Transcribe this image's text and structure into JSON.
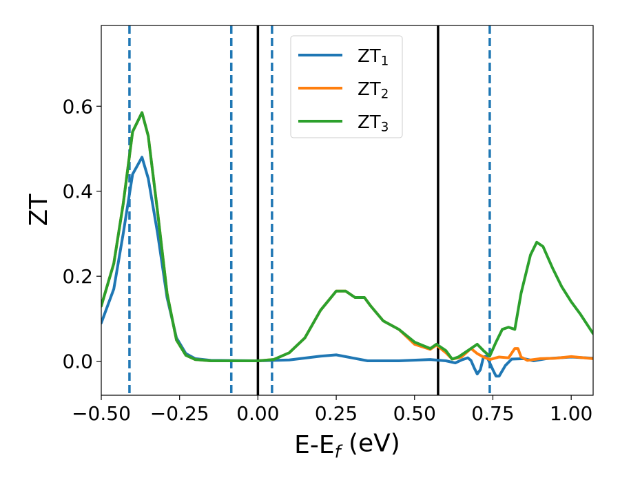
{
  "chart_data": {
    "type": "line",
    "xlabel": "E-E_f (eV)",
    "ylabel": "ZT",
    "xlim": [
      -0.5,
      1.07
    ],
    "ylim": [
      -0.08,
      0.79
    ],
    "grid": false,
    "legend_position": "top-center",
    "x_ticks": [
      -0.5,
      -0.25,
      0.0,
      0.25,
      0.5,
      0.75,
      1.0
    ],
    "x_tick_labels": [
      "−0.50",
      "−0.25",
      "0.00",
      "0.25",
      "0.50",
      "0.75",
      "1.00"
    ],
    "y_ticks": [
      0.0,
      0.2,
      0.4,
      0.6
    ],
    "y_tick_labels": [
      "0.0",
      "0.2",
      "0.4",
      "0.6"
    ],
    "series": [
      {
        "name": "ZT_1",
        "color": "#1f77b4",
        "points": [
          [
            -0.5,
            0.09
          ],
          [
            -0.46,
            0.17
          ],
          [
            -0.43,
            0.3
          ],
          [
            -0.4,
            0.44
          ],
          [
            -0.37,
            0.48
          ],
          [
            -0.35,
            0.43
          ],
          [
            -0.32,
            0.3
          ],
          [
            -0.29,
            0.15
          ],
          [
            -0.26,
            0.055
          ],
          [
            -0.23,
            0.018
          ],
          [
            -0.2,
            0.006
          ],
          [
            -0.15,
            0.002
          ],
          [
            0.0,
            0.001
          ],
          [
            0.1,
            0.003
          ],
          [
            0.2,
            0.012
          ],
          [
            0.25,
            0.015
          ],
          [
            0.3,
            0.008
          ],
          [
            0.35,
            0.001
          ],
          [
            0.45,
            0.001
          ],
          [
            0.55,
            0.004
          ],
          [
            0.6,
            0.001
          ],
          [
            0.63,
            -0.004
          ],
          [
            0.65,
            0.003
          ],
          [
            0.67,
            0.008
          ],
          [
            0.68,
            0.002
          ],
          [
            0.69,
            -0.015
          ],
          [
            0.7,
            -0.03
          ],
          [
            0.71,
            -0.02
          ],
          [
            0.72,
            0.01
          ],
          [
            0.73,
            0.012
          ],
          [
            0.75,
            -0.02
          ],
          [
            0.76,
            -0.035
          ],
          [
            0.77,
            -0.035
          ],
          [
            0.79,
            -0.01
          ],
          [
            0.81,
            0.005
          ],
          [
            0.85,
            0.006
          ],
          [
            0.88,
            0.001
          ],
          [
            0.92,
            0.006
          ],
          [
            1.0,
            0.01
          ],
          [
            1.07,
            0.007
          ]
        ]
      },
      {
        "name": "ZT_2",
        "color": "#ff7f0e",
        "points": [
          [
            -0.5,
            0.13
          ],
          [
            -0.46,
            0.23
          ],
          [
            -0.43,
            0.37
          ],
          [
            -0.4,
            0.54
          ],
          [
            -0.37,
            0.585
          ],
          [
            -0.35,
            0.53
          ],
          [
            -0.32,
            0.35
          ],
          [
            -0.29,
            0.16
          ],
          [
            -0.26,
            0.05
          ],
          [
            -0.23,
            0.014
          ],
          [
            -0.2,
            0.004
          ],
          [
            -0.15,
            0.001
          ],
          [
            0.0,
            0.001
          ],
          [
            0.05,
            0.004
          ],
          [
            0.1,
            0.02
          ],
          [
            0.15,
            0.055
          ],
          [
            0.2,
            0.12
          ],
          [
            0.25,
            0.165
          ],
          [
            0.28,
            0.165
          ],
          [
            0.31,
            0.15
          ],
          [
            0.34,
            0.15
          ],
          [
            0.36,
            0.13
          ],
          [
            0.4,
            0.095
          ],
          [
            0.45,
            0.075
          ],
          [
            0.5,
            0.04
          ],
          [
            0.55,
            0.028
          ],
          [
            0.57,
            0.038
          ],
          [
            0.6,
            0.02
          ],
          [
            0.62,
            0.005
          ],
          [
            0.65,
            0.01
          ],
          [
            0.68,
            0.03
          ],
          [
            0.7,
            0.018
          ],
          [
            0.72,
            0.01
          ],
          [
            0.74,
            0.004
          ],
          [
            0.77,
            0.01
          ],
          [
            0.8,
            0.008
          ],
          [
            0.82,
            0.03
          ],
          [
            0.83,
            0.03
          ],
          [
            0.84,
            0.01
          ],
          [
            0.86,
            0.002
          ],
          [
            0.9,
            0.006
          ],
          [
            0.95,
            0.007
          ],
          [
            1.0,
            0.011
          ],
          [
            1.07,
            0.006
          ]
        ]
      },
      {
        "name": "ZT_3",
        "color": "#2ca02c",
        "points": [
          [
            -0.5,
            0.13
          ],
          [
            -0.46,
            0.23
          ],
          [
            -0.43,
            0.37
          ],
          [
            -0.4,
            0.54
          ],
          [
            -0.37,
            0.585
          ],
          [
            -0.35,
            0.53
          ],
          [
            -0.32,
            0.35
          ],
          [
            -0.29,
            0.16
          ],
          [
            -0.26,
            0.05
          ],
          [
            -0.23,
            0.014
          ],
          [
            -0.2,
            0.004
          ],
          [
            -0.15,
            0.001
          ],
          [
            0.0,
            0.001
          ],
          [
            0.05,
            0.004
          ],
          [
            0.1,
            0.02
          ],
          [
            0.15,
            0.055
          ],
          [
            0.2,
            0.12
          ],
          [
            0.25,
            0.165
          ],
          [
            0.28,
            0.165
          ],
          [
            0.31,
            0.15
          ],
          [
            0.34,
            0.15
          ],
          [
            0.36,
            0.13
          ],
          [
            0.4,
            0.095
          ],
          [
            0.45,
            0.075
          ],
          [
            0.5,
            0.045
          ],
          [
            0.55,
            0.03
          ],
          [
            0.57,
            0.04
          ],
          [
            0.6,
            0.025
          ],
          [
            0.62,
            0.005
          ],
          [
            0.64,
            0.01
          ],
          [
            0.66,
            0.02
          ],
          [
            0.68,
            0.03
          ],
          [
            0.7,
            0.04
          ],
          [
            0.72,
            0.025
          ],
          [
            0.74,
            0.012
          ],
          [
            0.76,
            0.045
          ],
          [
            0.78,
            0.075
          ],
          [
            0.8,
            0.08
          ],
          [
            0.82,
            0.075
          ],
          [
            0.84,
            0.16
          ],
          [
            0.87,
            0.25
          ],
          [
            0.89,
            0.28
          ],
          [
            0.91,
            0.27
          ],
          [
            0.94,
            0.22
          ],
          [
            0.97,
            0.175
          ],
          [
            1.0,
            0.14
          ],
          [
            1.03,
            0.11
          ],
          [
            1.07,
            0.065
          ]
        ]
      }
    ],
    "vertical_lines": [
      {
        "x": -0.41,
        "style": "dashed",
        "color": "#1f77b4"
      },
      {
        "x": -0.085,
        "style": "dashed",
        "color": "#1f77b4"
      },
      {
        "x": 0.0,
        "style": "solid",
        "color": "#000000"
      },
      {
        "x": 0.045,
        "style": "dashed",
        "color": "#1f77b4"
      },
      {
        "x": 0.575,
        "style": "solid",
        "color": "#000000"
      },
      {
        "x": 0.74,
        "style": "dashed",
        "color": "#1f77b4"
      }
    ]
  }
}
